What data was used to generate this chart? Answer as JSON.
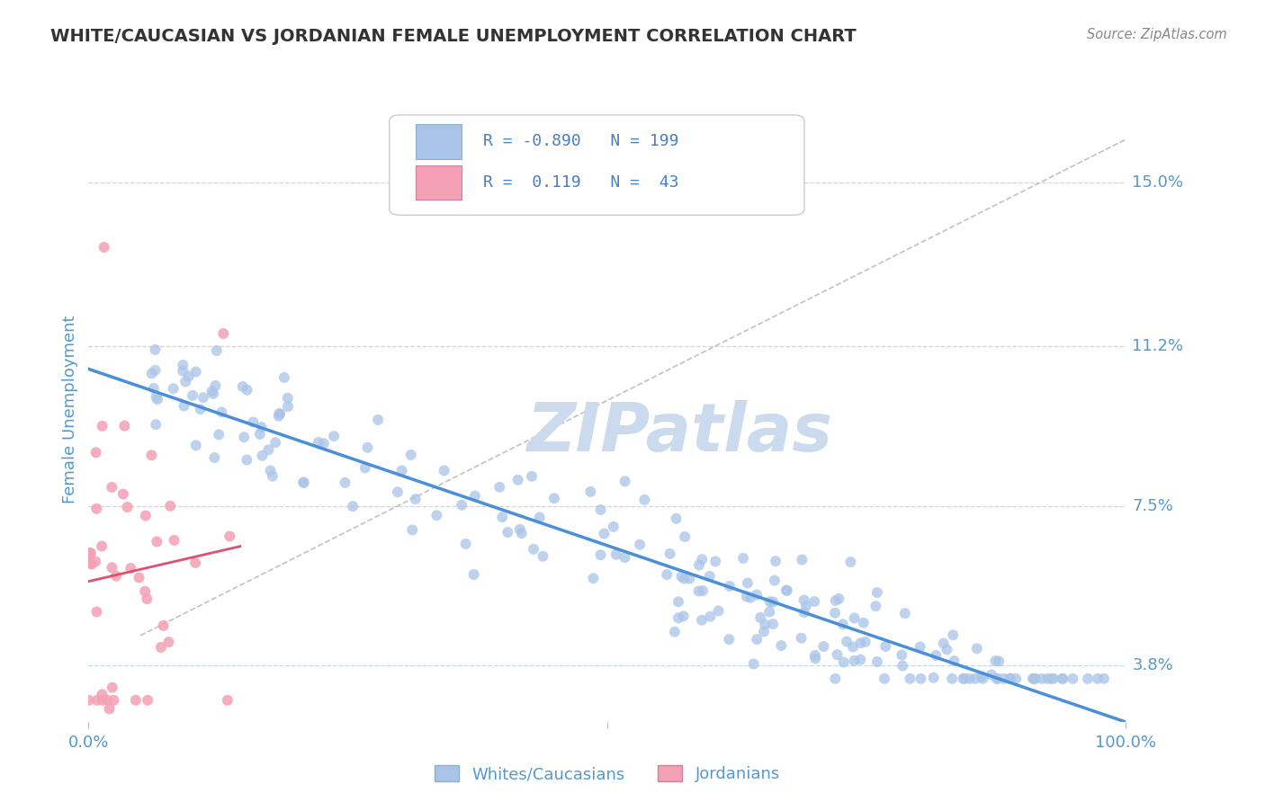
{
  "title": "WHITE/CAUCASIAN VS JORDANIAN FEMALE UNEMPLOYMENT CORRELATION CHART",
  "source": "Source: ZipAtlas.com",
  "ylabel": "Female Unemployment",
  "right_yticks": [
    15.0,
    11.2,
    7.5,
    3.8
  ],
  "right_ytick_labels": [
    "15.0%",
    "11.2%",
    "7.5%",
    "3.8%"
  ],
  "xlim": [
    0,
    100
  ],
  "ylim": [
    2.5,
    17.0
  ],
  "legend_blue_r": "-0.890",
  "legend_blue_n": "199",
  "legend_pink_r": "0.119",
  "legend_pink_n": "43",
  "blue_dot_color": "#aac4e8",
  "pink_dot_color": "#f4a0b5",
  "blue_line_color": "#4a90d9",
  "pink_line_color": "#e05070",
  "ref_line_color": "#bbbbbb",
  "title_color": "#333333",
  "axis_label_color": "#5599cc",
  "legend_r_color": "#4a7fc0",
  "watermark": "ZIPatlas",
  "watermark_color": "#ccdaee",
  "background_color": "#ffffff",
  "grid_color": "#b8cfe0",
  "seed": 42
}
